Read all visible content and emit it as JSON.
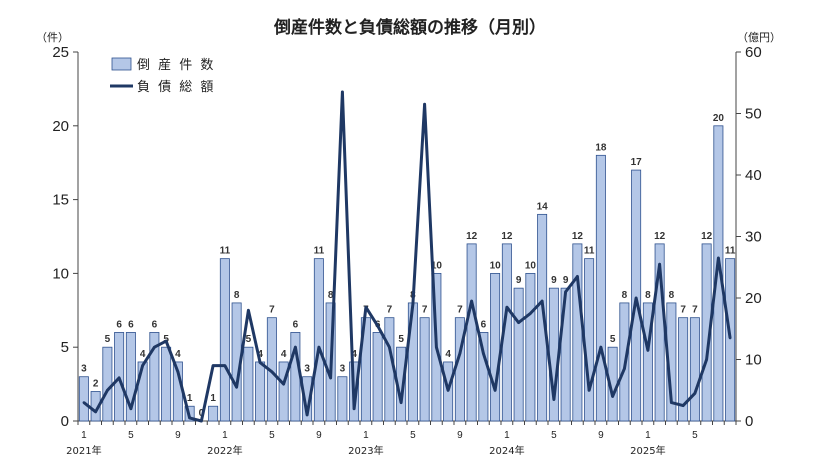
{
  "chart_data": {
    "type": "bar",
    "title": "倒産件数と負債総額の推移（月別）",
    "y_left_unit": "（件）",
    "y_right_unit": "（億円）",
    "y_left_range": [
      0,
      25
    ],
    "y_left_ticks": [
      "0",
      "5",
      "10",
      "15",
      "20",
      "25"
    ],
    "y_right_range": [
      0,
      60
    ],
    "y_right_ticks": [
      "0",
      "10",
      "20",
      "30",
      "40",
      "50",
      "60"
    ],
    "grid": false,
    "legend_position": "top-left",
    "x_month_ticks": [
      {
        "index": 0,
        "label": "1"
      },
      {
        "index": 4,
        "label": "5"
      },
      {
        "index": 8,
        "label": "9"
      },
      {
        "index": 12,
        "label": "1"
      },
      {
        "index": 16,
        "label": "5"
      },
      {
        "index": 20,
        "label": "9"
      },
      {
        "index": 24,
        "label": "1"
      },
      {
        "index": 28,
        "label": "5"
      },
      {
        "index": 32,
        "label": "9"
      },
      {
        "index": 36,
        "label": "1"
      },
      {
        "index": 40,
        "label": "5"
      },
      {
        "index": 44,
        "label": "9"
      },
      {
        "index": 48,
        "label": "1"
      },
      {
        "index": 52,
        "label": "5"
      }
    ],
    "x_year_labels": [
      {
        "index": 0,
        "label": "2021年"
      },
      {
        "index": 12,
        "label": "2022年"
      },
      {
        "index": 24,
        "label": "2023年"
      },
      {
        "index": 36,
        "label": "2024年"
      },
      {
        "index": 48,
        "label": "2025年"
      }
    ],
    "series": [
      {
        "name": "倒 産 件 数",
        "type": "bar",
        "axis": "left",
        "color": "#b4c7e7",
        "values": [
          3,
          2,
          5,
          6,
          6,
          4,
          6,
          5,
          4,
          1,
          0,
          1,
          11,
          8,
          5,
          4,
          7,
          4,
          6,
          3,
          11,
          8,
          3,
          4,
          7,
          6,
          7,
          5,
          8,
          7,
          10,
          4,
          7,
          12,
          6,
          10,
          12,
          9,
          10,
          14,
          9,
          9,
          12,
          11,
          18,
          5,
          8,
          17,
          8,
          12,
          8,
          7,
          7,
          12,
          20,
          11
        ]
      },
      {
        "name": "負 債 総 額",
        "type": "line",
        "axis": "right",
        "color": "#1f3864",
        "values": [
          3,
          1.5,
          5,
          7,
          2,
          9,
          12,
          13,
          8,
          0.5,
          0,
          9,
          9,
          5.5,
          18,
          9.5,
          8,
          6,
          12,
          1,
          12,
          7,
          53.5,
          2,
          18.5,
          15.5,
          12,
          3,
          19,
          51.5,
          12,
          5,
          11,
          19.5,
          11,
          5,
          18.5,
          16,
          17.5,
          19.5,
          3.5,
          21,
          23.5,
          5,
          12,
          4,
          8.5,
          20,
          11.5,
          25.5,
          3,
          2.5,
          4.5,
          10,
          26.5,
          13.5
        ]
      }
    ]
  }
}
